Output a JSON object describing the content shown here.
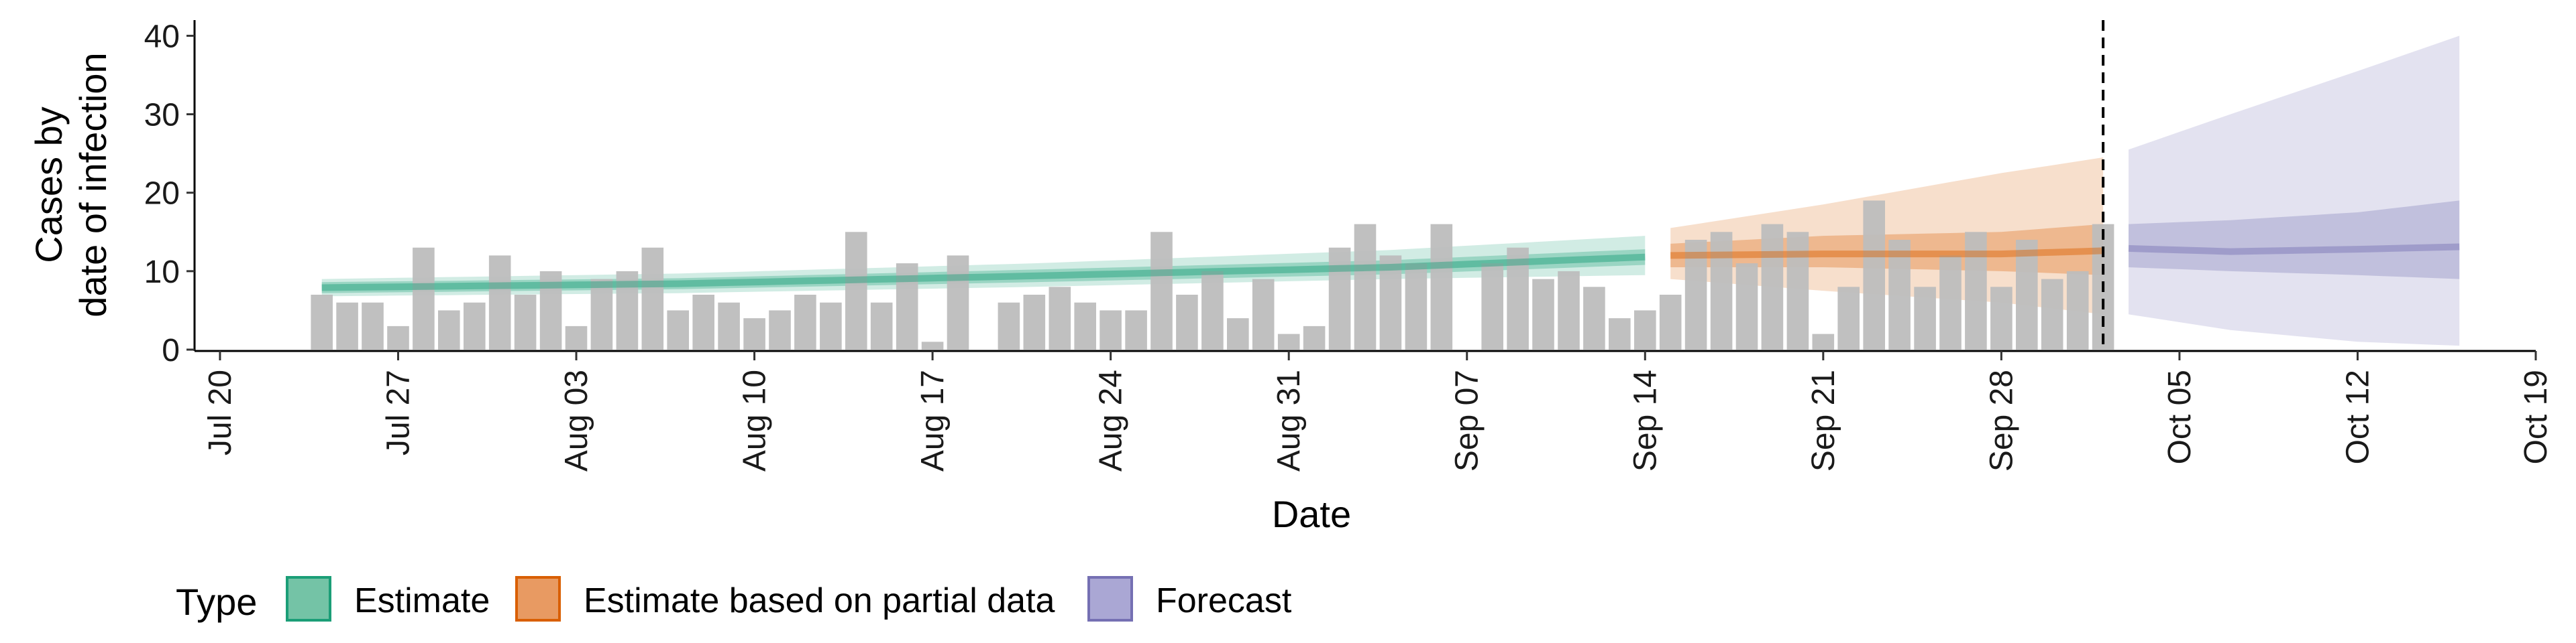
{
  "chart_data": {
    "type": "bar",
    "ylabel_lines": [
      "Cases by",
      "date of infection"
    ],
    "xlabel": "Date",
    "ylim": [
      0,
      42
    ],
    "yticks": [
      0,
      10,
      20,
      30,
      40
    ],
    "xlim": [
      "2020-07-19",
      "2020-10-19"
    ],
    "xtick_dates": [
      "2020-07-20",
      "2020-07-27",
      "2020-08-03",
      "2020-08-10",
      "2020-08-17",
      "2020-08-24",
      "2020-08-31",
      "2020-09-07",
      "2020-09-14",
      "2020-09-21",
      "2020-09-28",
      "2020-10-05",
      "2020-10-12",
      "2020-10-19"
    ],
    "xtick_labels": [
      "Jul 20",
      "Jul 27",
      "Aug 03",
      "Aug 10",
      "Aug 17",
      "Aug 24",
      "Aug 31",
      "Sep 07",
      "Sep 14",
      "Sep 21",
      "Sep 28",
      "Oct 05",
      "Oct 12",
      "Oct 19"
    ],
    "vline_date": "2020-10-02",
    "bars": [
      {
        "date": "2020-07-24",
        "value": 7
      },
      {
        "date": "2020-07-25",
        "value": 6
      },
      {
        "date": "2020-07-26",
        "value": 6
      },
      {
        "date": "2020-07-27",
        "value": 3
      },
      {
        "date": "2020-07-28",
        "value": 13
      },
      {
        "date": "2020-07-29",
        "value": 5
      },
      {
        "date": "2020-07-30",
        "value": 6
      },
      {
        "date": "2020-07-31",
        "value": 12
      },
      {
        "date": "2020-08-01",
        "value": 7
      },
      {
        "date": "2020-08-02",
        "value": 10
      },
      {
        "date": "2020-08-03",
        "value": 3
      },
      {
        "date": "2020-08-04",
        "value": 9
      },
      {
        "date": "2020-08-05",
        "value": 10
      },
      {
        "date": "2020-08-06",
        "value": 13
      },
      {
        "date": "2020-08-07",
        "value": 5
      },
      {
        "date": "2020-08-08",
        "value": 7
      },
      {
        "date": "2020-08-09",
        "value": 6
      },
      {
        "date": "2020-08-10",
        "value": 4
      },
      {
        "date": "2020-08-11",
        "value": 5
      },
      {
        "date": "2020-08-12",
        "value": 7
      },
      {
        "date": "2020-08-13",
        "value": 6
      },
      {
        "date": "2020-08-14",
        "value": 15
      },
      {
        "date": "2020-08-15",
        "value": 6
      },
      {
        "date": "2020-08-16",
        "value": 11
      },
      {
        "date": "2020-08-17",
        "value": 1
      },
      {
        "date": "2020-08-18",
        "value": 12
      },
      {
        "date": "2020-08-20",
        "value": 6
      },
      {
        "date": "2020-08-21",
        "value": 7
      },
      {
        "date": "2020-08-22",
        "value": 8
      },
      {
        "date": "2020-08-23",
        "value": 6
      },
      {
        "date": "2020-08-24",
        "value": 5
      },
      {
        "date": "2020-08-25",
        "value": 5
      },
      {
        "date": "2020-08-26",
        "value": 15
      },
      {
        "date": "2020-08-27",
        "value": 7
      },
      {
        "date": "2020-08-28",
        "value": 10
      },
      {
        "date": "2020-08-29",
        "value": 4
      },
      {
        "date": "2020-08-30",
        "value": 9
      },
      {
        "date": "2020-08-31",
        "value": 2
      },
      {
        "date": "2020-09-01",
        "value": 3
      },
      {
        "date": "2020-09-02",
        "value": 13
      },
      {
        "date": "2020-09-03",
        "value": 16
      },
      {
        "date": "2020-09-04",
        "value": 12
      },
      {
        "date": "2020-09-05",
        "value": 11
      },
      {
        "date": "2020-09-06",
        "value": 16
      },
      {
        "date": "2020-09-08",
        "value": 11
      },
      {
        "date": "2020-09-09",
        "value": 13
      },
      {
        "date": "2020-09-10",
        "value": 9
      },
      {
        "date": "2020-09-11",
        "value": 10
      },
      {
        "date": "2020-09-12",
        "value": 8
      },
      {
        "date": "2020-09-13",
        "value": 4
      },
      {
        "date": "2020-09-14",
        "value": 5
      },
      {
        "date": "2020-09-15",
        "value": 7
      },
      {
        "date": "2020-09-16",
        "value": 14
      },
      {
        "date": "2020-09-17",
        "value": 15
      },
      {
        "date": "2020-09-18",
        "value": 11
      },
      {
        "date": "2020-09-19",
        "value": 16
      },
      {
        "date": "2020-09-20",
        "value": 15
      },
      {
        "date": "2020-09-21",
        "value": 2
      },
      {
        "date": "2020-09-22",
        "value": 8
      },
      {
        "date": "2020-09-23",
        "value": 19
      },
      {
        "date": "2020-09-24",
        "value": 14
      },
      {
        "date": "2020-09-25",
        "value": 8
      },
      {
        "date": "2020-09-26",
        "value": 12
      },
      {
        "date": "2020-09-27",
        "value": 15
      },
      {
        "date": "2020-09-28",
        "value": 8
      },
      {
        "date": "2020-09-29",
        "value": 14
      },
      {
        "date": "2020-09-30",
        "value": 9
      },
      {
        "date": "2020-10-01",
        "value": 10
      },
      {
        "date": "2020-10-02",
        "value": 16
      }
    ],
    "series": [
      {
        "name": "Estimate",
        "color": "#1b9e77",
        "x": [
          "2020-07-24",
          "2020-08-07",
          "2020-08-21",
          "2020-09-04",
          "2020-09-14"
        ],
        "median": [
          7.9,
          8.4,
          9.4,
          10.5,
          11.8
        ],
        "inner": [
          [
            7.2,
            8.6
          ],
          [
            7.7,
            9.1
          ],
          [
            8.6,
            10.2
          ],
          [
            9.6,
            11.4
          ],
          [
            10.8,
            12.8
          ]
        ],
        "outer": [
          [
            6.8,
            9.0
          ],
          [
            7.2,
            9.7
          ],
          [
            8.0,
            11.0
          ],
          [
            9.0,
            12.7
          ],
          [
            9.5,
            14.5
          ]
        ]
      },
      {
        "name": "Estimate based on partial data",
        "color": "#d95f02",
        "x": [
          "2020-09-15",
          "2020-09-21",
          "2020-09-28",
          "2020-10-02"
        ],
        "median": [
          12.0,
          12.2,
          12.2,
          12.6
        ],
        "inner": [
          [
            10.5,
            13.5
          ],
          [
            10.5,
            14.5
          ],
          [
            10.0,
            15.0
          ],
          [
            9.5,
            16.0
          ]
        ],
        "outer": [
          [
            9.0,
            15.5
          ],
          [
            7.5,
            18.5
          ],
          [
            6.0,
            22.5
          ],
          [
            4.5,
            24.5
          ]
        ]
      },
      {
        "name": "Forecast",
        "color": "#7570b3",
        "x": [
          "2020-10-03",
          "2020-10-07",
          "2020-10-12",
          "2020-10-16"
        ],
        "median": [
          12.9,
          12.5,
          12.8,
          13.1
        ],
        "inner": [
          [
            10.5,
            16.0
          ],
          [
            10.0,
            16.5
          ],
          [
            9.5,
            17.5
          ],
          [
            9.0,
            19.0
          ]
        ],
        "outer": [
          [
            4.5,
            25.5
          ],
          [
            2.5,
            30.0
          ],
          [
            1.0,
            35.5
          ],
          [
            0.5,
            40.0
          ]
        ]
      }
    ],
    "legend": {
      "title": "Type",
      "position": "bottom",
      "items": [
        {
          "label": "Estimate",
          "fill": "#74c3a6",
          "stroke": "#1b9e77"
        },
        {
          "label": "Estimate based on partial data",
          "fill": "#e89a62",
          "stroke": "#d95f02"
        },
        {
          "label": "Forecast",
          "fill": "#aaa7d4",
          "stroke": "#7570b3"
        }
      ]
    },
    "bar_color": "#bdbdbd",
    "grid": false
  }
}
